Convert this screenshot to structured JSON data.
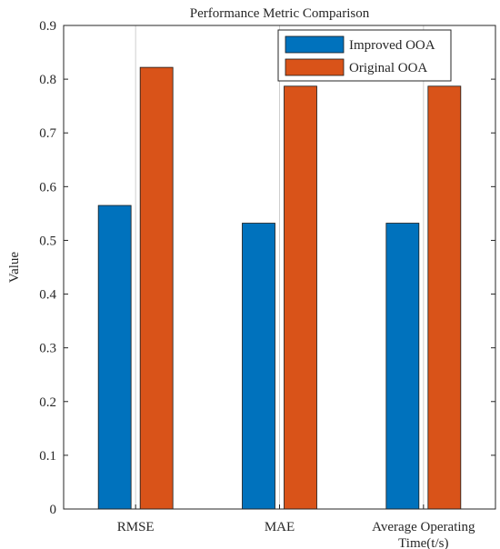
{
  "chart_data": {
    "type": "bar",
    "title": "Performance Metric Comparison",
    "xlabel": "",
    "ylabel": "Value",
    "categories": [
      [
        "RMSE"
      ],
      [
        "MAE"
      ],
      [
        "Average Operating",
        "Time(t/s)"
      ]
    ],
    "series": [
      {
        "name": "Improved OOA",
        "color": "#0072BD",
        "values": [
          0.565,
          0.532,
          0.532
        ]
      },
      {
        "name": "Original OOA",
        "color": "#D95319",
        "values": [
          0.822,
          0.787,
          0.787
        ]
      }
    ],
    "ylim": [
      0,
      0.9
    ],
    "yticks": [
      0,
      0.1,
      0.2,
      0.3,
      0.4,
      0.5,
      0.6,
      0.7,
      0.8,
      0.9
    ],
    "ytick_labels": [
      "0",
      "0.1",
      "0.2",
      "0.3",
      "0.4",
      "0.5",
      "0.6",
      "0.7",
      "0.8",
      "0.9"
    ],
    "grid": "x-only",
    "legend_position": "top-right"
  }
}
